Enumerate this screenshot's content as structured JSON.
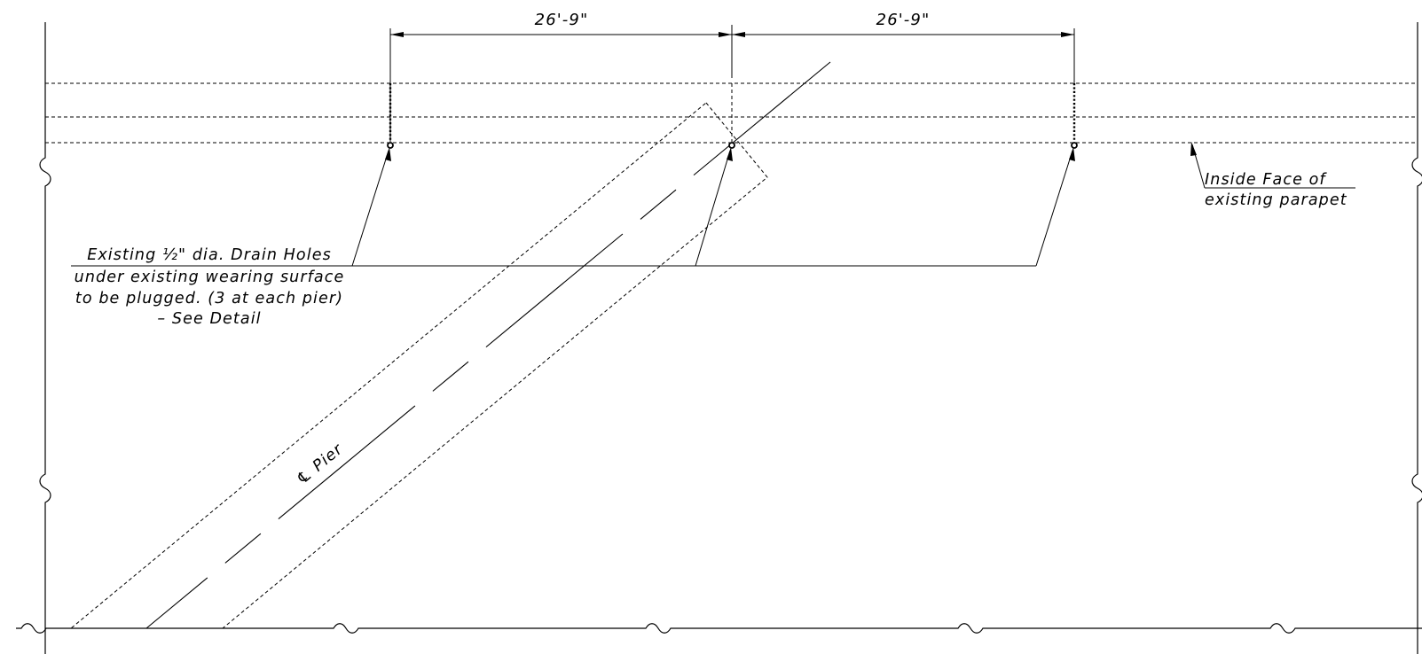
{
  "dimensions": {
    "left_span": "26'-9\"",
    "right_span": "26'-9\""
  },
  "labels": {
    "pier_centerline": "℄ Pier",
    "parapet_note": {
      "line1": "Inside Face of",
      "line2": "existing parapet"
    },
    "drain_note": {
      "line1": "Existing ½\" dia. Drain Holes",
      "line2": "under existing wearing surface",
      "line3": "to be plugged. (3 at each pier)",
      "line4": "– See Detail"
    }
  },
  "colors": {
    "ink": "#000000",
    "paper": "#ffffff"
  }
}
